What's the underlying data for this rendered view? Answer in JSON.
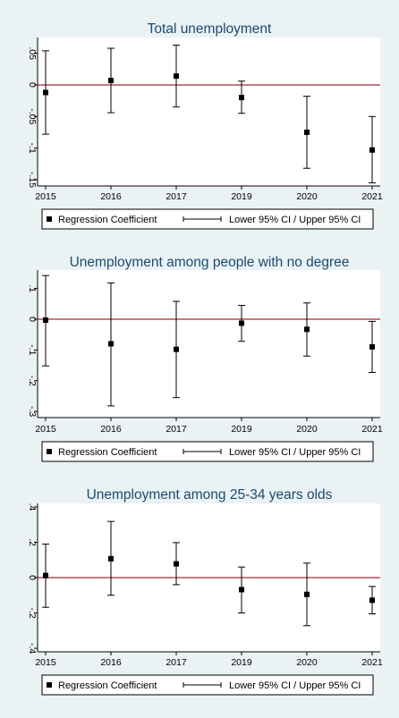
{
  "chart_data": [
    {
      "type": "scatter",
      "title": "Total unemployment",
      "categories": [
        "2015",
        "2016",
        "2017",
        "2019",
        "2020",
        "2021"
      ],
      "ylim": [
        -0.16,
        0.075
      ],
      "yticks": [
        0.05,
        0,
        -0.05,
        -0.1,
        -0.15
      ],
      "yticklabels": [
        ".05",
        "0",
        "-.05",
        "-.1",
        "-.15"
      ],
      "reference_line": 0,
      "grid": false,
      "legend_position": "bottom",
      "series": [
        {
          "name": "Regression Coefficient",
          "values": [
            -0.012,
            0.007,
            0.014,
            -0.02,
            -0.075,
            -0.103
          ]
        },
        {
          "name": "Lower 95% CI / Upper 95% CI",
          "lower": [
            -0.078,
            -0.044,
            -0.035,
            -0.045,
            -0.132,
            -0.155
          ],
          "upper": [
            0.054,
            0.058,
            0.063,
            0.006,
            -0.018,
            -0.05
          ]
        }
      ]
    },
    {
      "type": "scatter",
      "title": "Unemployment among people with no degree",
      "categories": [
        "2015",
        "2016",
        "2017",
        "2019",
        "2020",
        "2021"
      ],
      "ylim": [
        -0.32,
        0.16
      ],
      "yticks": [
        0.1,
        0,
        -0.1,
        -0.2,
        -0.3
      ],
      "yticklabels": [
        ".1",
        "0",
        "-.1",
        "-.2",
        "-.3"
      ],
      "reference_line": 0,
      "grid": false,
      "legend_position": "bottom",
      "series": [
        {
          "name": "Regression Coefficient",
          "values": [
            -0.003,
            -0.08,
            -0.098,
            -0.013,
            -0.033,
            -0.09
          ]
        },
        {
          "name": "Lower 95% CI / Upper 95% CI",
          "lower": [
            -0.152,
            -0.282,
            -0.255,
            -0.072,
            -0.12,
            -0.173
          ],
          "upper": [
            0.142,
            0.118,
            0.058,
            0.045,
            0.053,
            -0.007
          ]
        }
      ]
    },
    {
      "type": "scatter",
      "title": "Unemployment among 25-34 years olds",
      "categories": [
        "2015",
        "2016",
        "2017",
        "2019",
        "2020",
        "2021"
      ],
      "ylim": [
        -0.42,
        0.42
      ],
      "yticks": [
        0.4,
        0.2,
        0,
        -0.2,
        -0.4
      ],
      "yticklabels": [
        ".4",
        ".2",
        "0",
        "-.2",
        "-.4"
      ],
      "reference_line": 0,
      "grid": false,
      "legend_position": "bottom",
      "series": [
        {
          "name": "Regression Coefficient",
          "values": [
            0.012,
            0.107,
            0.078,
            -0.068,
            -0.095,
            -0.128
          ]
        },
        {
          "name": "Lower 95% CI / Upper 95% CI",
          "lower": [
            -0.168,
            -0.1,
            -0.04,
            -0.2,
            -0.272,
            -0.205
          ],
          "upper": [
            0.19,
            0.318,
            0.198,
            0.06,
            0.082,
            -0.05
          ]
        }
      ]
    }
  ],
  "colors": {
    "reference_line": "#a52a3c",
    "marker": "#000000",
    "title": "#1a4a72",
    "page_background": "#eaf2f3",
    "plot_background": "#ffffff"
  }
}
